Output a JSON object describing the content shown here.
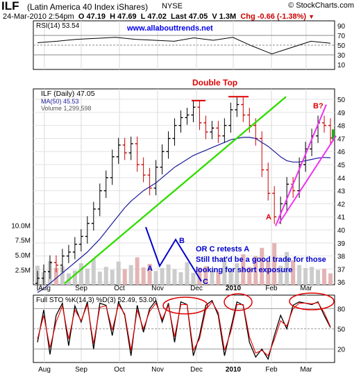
{
  "header": {
    "symbol": "ILF",
    "name": "(Latin America 40 Index iShares)",
    "exchange": "NYSE",
    "date": "24-Mar-2010 2:54pm",
    "open": "O 47.19",
    "high": "H 47.69",
    "low": "L 47.02",
    "last": "Last 47.05",
    "volume": "V 1.3M",
    "change": "Chg -0.66 (-1.38%)",
    "brand": "© StockCharts.com",
    "url": "www.allabouttrends.net"
  },
  "colors": {
    "up": "#000000",
    "down": "#cc0000",
    "ma": "#1a1a9a",
    "trendline": "#33dd00",
    "channel": "#ee33ee",
    "annotation_red": "#dd0000",
    "annotation_blue": "#0000cc",
    "volume_up": "#cccccc",
    "volume_down": "#e4b4b4",
    "stoch_k": "#000000",
    "stoch_d": "#ee0000"
  },
  "chart_data": [
    {
      "type": "line",
      "panel": "rsi",
      "label": "RSI(14) 53.54",
      "y_ticks": [
        90,
        70,
        50,
        30,
        10
      ],
      "ylim": [
        0,
        100
      ],
      "reference_lines": [
        70,
        50,
        30
      ],
      "x": [
        "Aug",
        "",
        "Sep",
        "",
        "Oct",
        "",
        "Nov",
        "",
        "Dec",
        "",
        "2010",
        "",
        "Feb",
        "",
        "Mar",
        ""
      ],
      "series": [
        {
          "name": "RSI(14)",
          "values": [
            55,
            58,
            62,
            64,
            66,
            62,
            60,
            58,
            65,
            60,
            66,
            48,
            32,
            45,
            58,
            54
          ]
        }
      ]
    },
    {
      "type": "candlestick",
      "panel": "price",
      "title": "ILF (Daily) 47.05",
      "legend": [
        "MA(50) 45.53",
        "Volume 1,299,598"
      ],
      "xlabel_ticks": [
        "Aug",
        "Sep",
        "Oct",
        "Nov",
        "Dec",
        "2010",
        "Feb",
        "Mar"
      ],
      "y_ticks": [
        36,
        37,
        38,
        39,
        40,
        41,
        42,
        43,
        44,
        45,
        46,
        47,
        48,
        49,
        50
      ],
      "ylim": [
        35.8,
        50.8
      ],
      "volume_ticks": [
        "2.5M",
        "5.0M",
        "7.5M",
        "10.0M"
      ],
      "close_weekly": [
        36.3,
        36.8,
        37.5,
        37.3,
        38.0,
        38.3,
        38.9,
        39.5,
        40.5,
        41.6,
        43.0,
        44.0,
        45.6,
        46.5,
        45.9,
        46.6,
        45.0,
        44.2,
        43.2,
        44.8,
        46.0,
        47.0,
        48.0,
        48.6,
        48.8,
        49.4,
        48.2,
        47.5,
        47.8,
        47.2,
        48.0,
        49.2,
        49.6,
        48.8,
        48.0,
        47.0,
        44.6,
        42.8,
        41.0,
        42.0,
        43.5,
        43.0,
        45.0,
        46.2,
        47.2,
        48.2,
        48.0,
        47.05
      ],
      "ma50_weekly": [
        35.2,
        35.5,
        35.9,
        36.3,
        36.7,
        37.1,
        37.5,
        37.9,
        38.3,
        38.8,
        39.3,
        39.9,
        40.5,
        41.1,
        41.7,
        42.2,
        42.6,
        43.0,
        43.3,
        43.6,
        44.0,
        44.4,
        44.8,
        45.1,
        45.4,
        45.7,
        45.9,
        46.1,
        46.3,
        46.5,
        46.7,
        46.9,
        47.0,
        47.1,
        47.1,
        47.0,
        46.7,
        46.4,
        46.0,
        45.6,
        45.3,
        45.2,
        45.2,
        45.3,
        45.4,
        45.5,
        45.55,
        45.53
      ],
      "volume_weekly_millions": [
        3.2,
        2.1,
        4.0,
        2.8,
        3.1,
        1.9,
        2.4,
        3.6,
        2.7,
        4.3,
        2.2,
        3.0,
        2.5,
        3.9,
        2.6,
        3.3,
        4.6,
        2.9,
        3.5,
        2.3,
        2.8,
        3.4,
        2.6,
        2.1,
        3.8,
        2.0,
        2.9,
        3.1,
        2.4,
        2.2,
        4.5,
        2.7,
        3.6,
        5.1,
        3.0,
        4.8,
        6.2,
        3.9,
        7.0,
        3.2,
        5.5,
        4.1,
        3.3,
        2.8,
        3.0,
        2.5,
        2.7,
        1.9
      ],
      "annotations": {
        "double_top": "Double Top",
        "point_a": "A",
        "point_b": "B",
        "point_q": "B?",
        "point_c": "C",
        "point_a_red": "A",
        "note_1": "OR C retests A",
        "note_2": "Still that'd be a good trade for those",
        "note_3": "looking for short exposure"
      }
    },
    {
      "type": "line",
      "panel": "stochastic",
      "label": "Full STO %K(14,3) %D(3) 52.49, 53.00",
      "y_ticks": [
        80,
        50,
        20
      ],
      "ylim": [
        0,
        100
      ],
      "reference_lines": [
        80,
        50,
        20
      ],
      "series": [
        {
          "name": "%K",
          "values": [
            30,
            78,
            12,
            70,
            88,
            25,
            84,
            60,
            90,
            20,
            88,
            85,
            40,
            90,
            70,
            10,
            85,
            45,
            80,
            92,
            60,
            88,
            30,
            90,
            86,
            10,
            40,
            85,
            92,
            70,
            10,
            50,
            90,
            85,
            30,
            8,
            20,
            5,
            40,
            70,
            50,
            85,
            90,
            88,
            86,
            90,
            70,
            52
          ]
        },
        {
          "name": "%D",
          "values": [
            35,
            70,
            22,
            60,
            84,
            35,
            78,
            62,
            86,
            28,
            82,
            84,
            48,
            86,
            72,
            18,
            78,
            50,
            76,
            88,
            64,
            85,
            38,
            86,
            86,
            18,
            35,
            78,
            90,
            74,
            18,
            45,
            86,
            86,
            38,
            14,
            18,
            10,
            34,
            62,
            54,
            80,
            88,
            88,
            87,
            89,
            74,
            53
          ]
        }
      ]
    }
  ]
}
